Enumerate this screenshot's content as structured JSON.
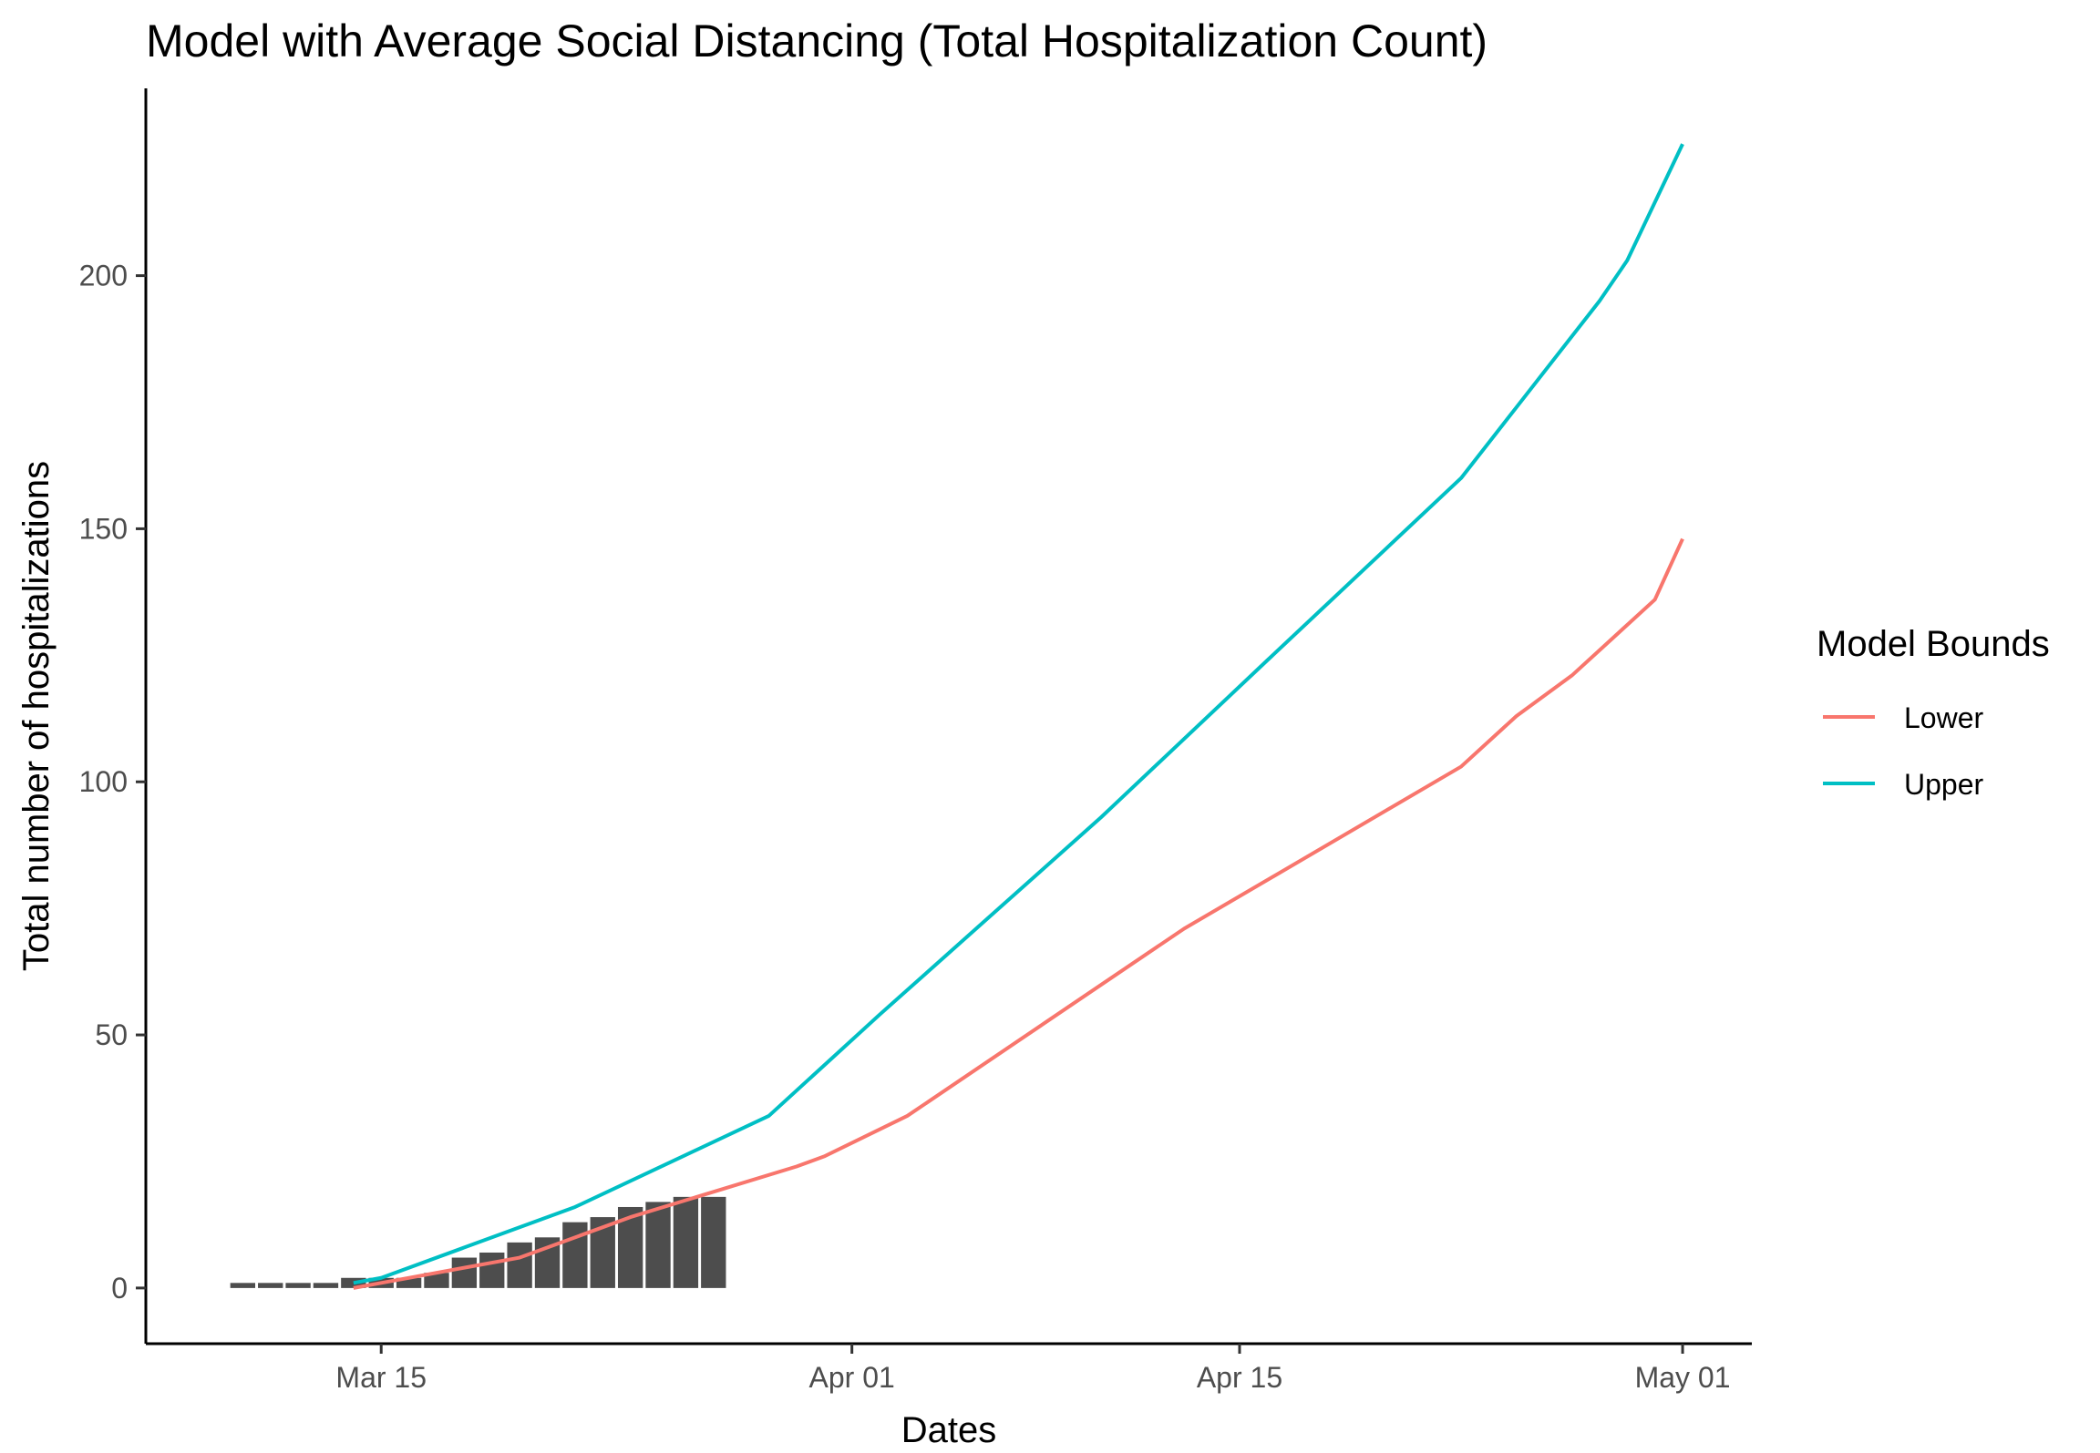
{
  "chart_data": {
    "type": "bar",
    "title": "Model with Average Social Distancing (Total Hospitalization Count)",
    "xlabel": "Dates",
    "ylabel": "Total number of hospitalizations",
    "x_ticks": [
      {
        "label": "Mar 15",
        "date": "2020-03-15"
      },
      {
        "label": "Apr 01",
        "date": "2020-04-01"
      },
      {
        "label": "Apr 15",
        "date": "2020-04-15"
      },
      {
        "label": "May 01",
        "date": "2020-05-01"
      }
    ],
    "y_ticks": [
      0,
      50,
      100,
      150,
      200
    ],
    "xlim": [
      "2020-03-06 12:00",
      "2020-05-03 12:00"
    ],
    "ylim": [
      -11,
      237
    ],
    "grid": false,
    "legend": {
      "title": "Model Bounds",
      "placement": "right",
      "entries": [
        {
          "label": "Lower",
          "color": "#F8766D"
        },
        {
          "label": "Upper",
          "color": "#00BFC4"
        }
      ]
    },
    "bar_color": "#4D4D4D",
    "bars": {
      "name": "Observed",
      "x": [
        "2020-03-10",
        "2020-03-11",
        "2020-03-12",
        "2020-03-13",
        "2020-03-14",
        "2020-03-15",
        "2020-03-16",
        "2020-03-17",
        "2020-03-18",
        "2020-03-19",
        "2020-03-20",
        "2020-03-21",
        "2020-03-22",
        "2020-03-23",
        "2020-03-24",
        "2020-03-25",
        "2020-03-26",
        "2020-03-27"
      ],
      "values": [
        1,
        1,
        1,
        1,
        2,
        2,
        2,
        3,
        6,
        7,
        9,
        10,
        13,
        14,
        16,
        17,
        18,
        18
      ]
    },
    "series": [
      {
        "name": "Lower",
        "color": "#F8766D",
        "points": [
          [
            "2020-03-14",
            0
          ],
          [
            "2020-03-15",
            1
          ],
          [
            "2020-03-18",
            4
          ],
          [
            "2020-03-20",
            6
          ],
          [
            "2020-03-24",
            14
          ],
          [
            "2020-03-27",
            19
          ],
          [
            "2020-03-30",
            24
          ],
          [
            "2020-03-31",
            26
          ],
          [
            "2020-04-03",
            34
          ],
          [
            "2020-04-13",
            71
          ],
          [
            "2020-04-23",
            103
          ],
          [
            "2020-04-25",
            113
          ],
          [
            "2020-04-27",
            121
          ],
          [
            "2020-04-29",
            131
          ],
          [
            "2020-04-30",
            136
          ],
          [
            "2020-05-01",
            148
          ]
        ]
      },
      {
        "name": "Upper",
        "color": "#00BFC4",
        "points": [
          [
            "2020-03-14",
            1
          ],
          [
            "2020-03-15",
            2
          ],
          [
            "2020-03-22",
            16
          ],
          [
            "2020-03-29",
            34
          ],
          [
            "2020-04-02",
            54
          ],
          [
            "2020-04-10",
            93
          ],
          [
            "2020-04-16",
            124
          ],
          [
            "2020-04-23",
            160
          ],
          [
            "2020-04-25",
            174
          ],
          [
            "2020-04-28",
            195
          ],
          [
            "2020-04-29",
            203
          ],
          [
            "2020-05-01",
            226
          ]
        ]
      }
    ]
  }
}
